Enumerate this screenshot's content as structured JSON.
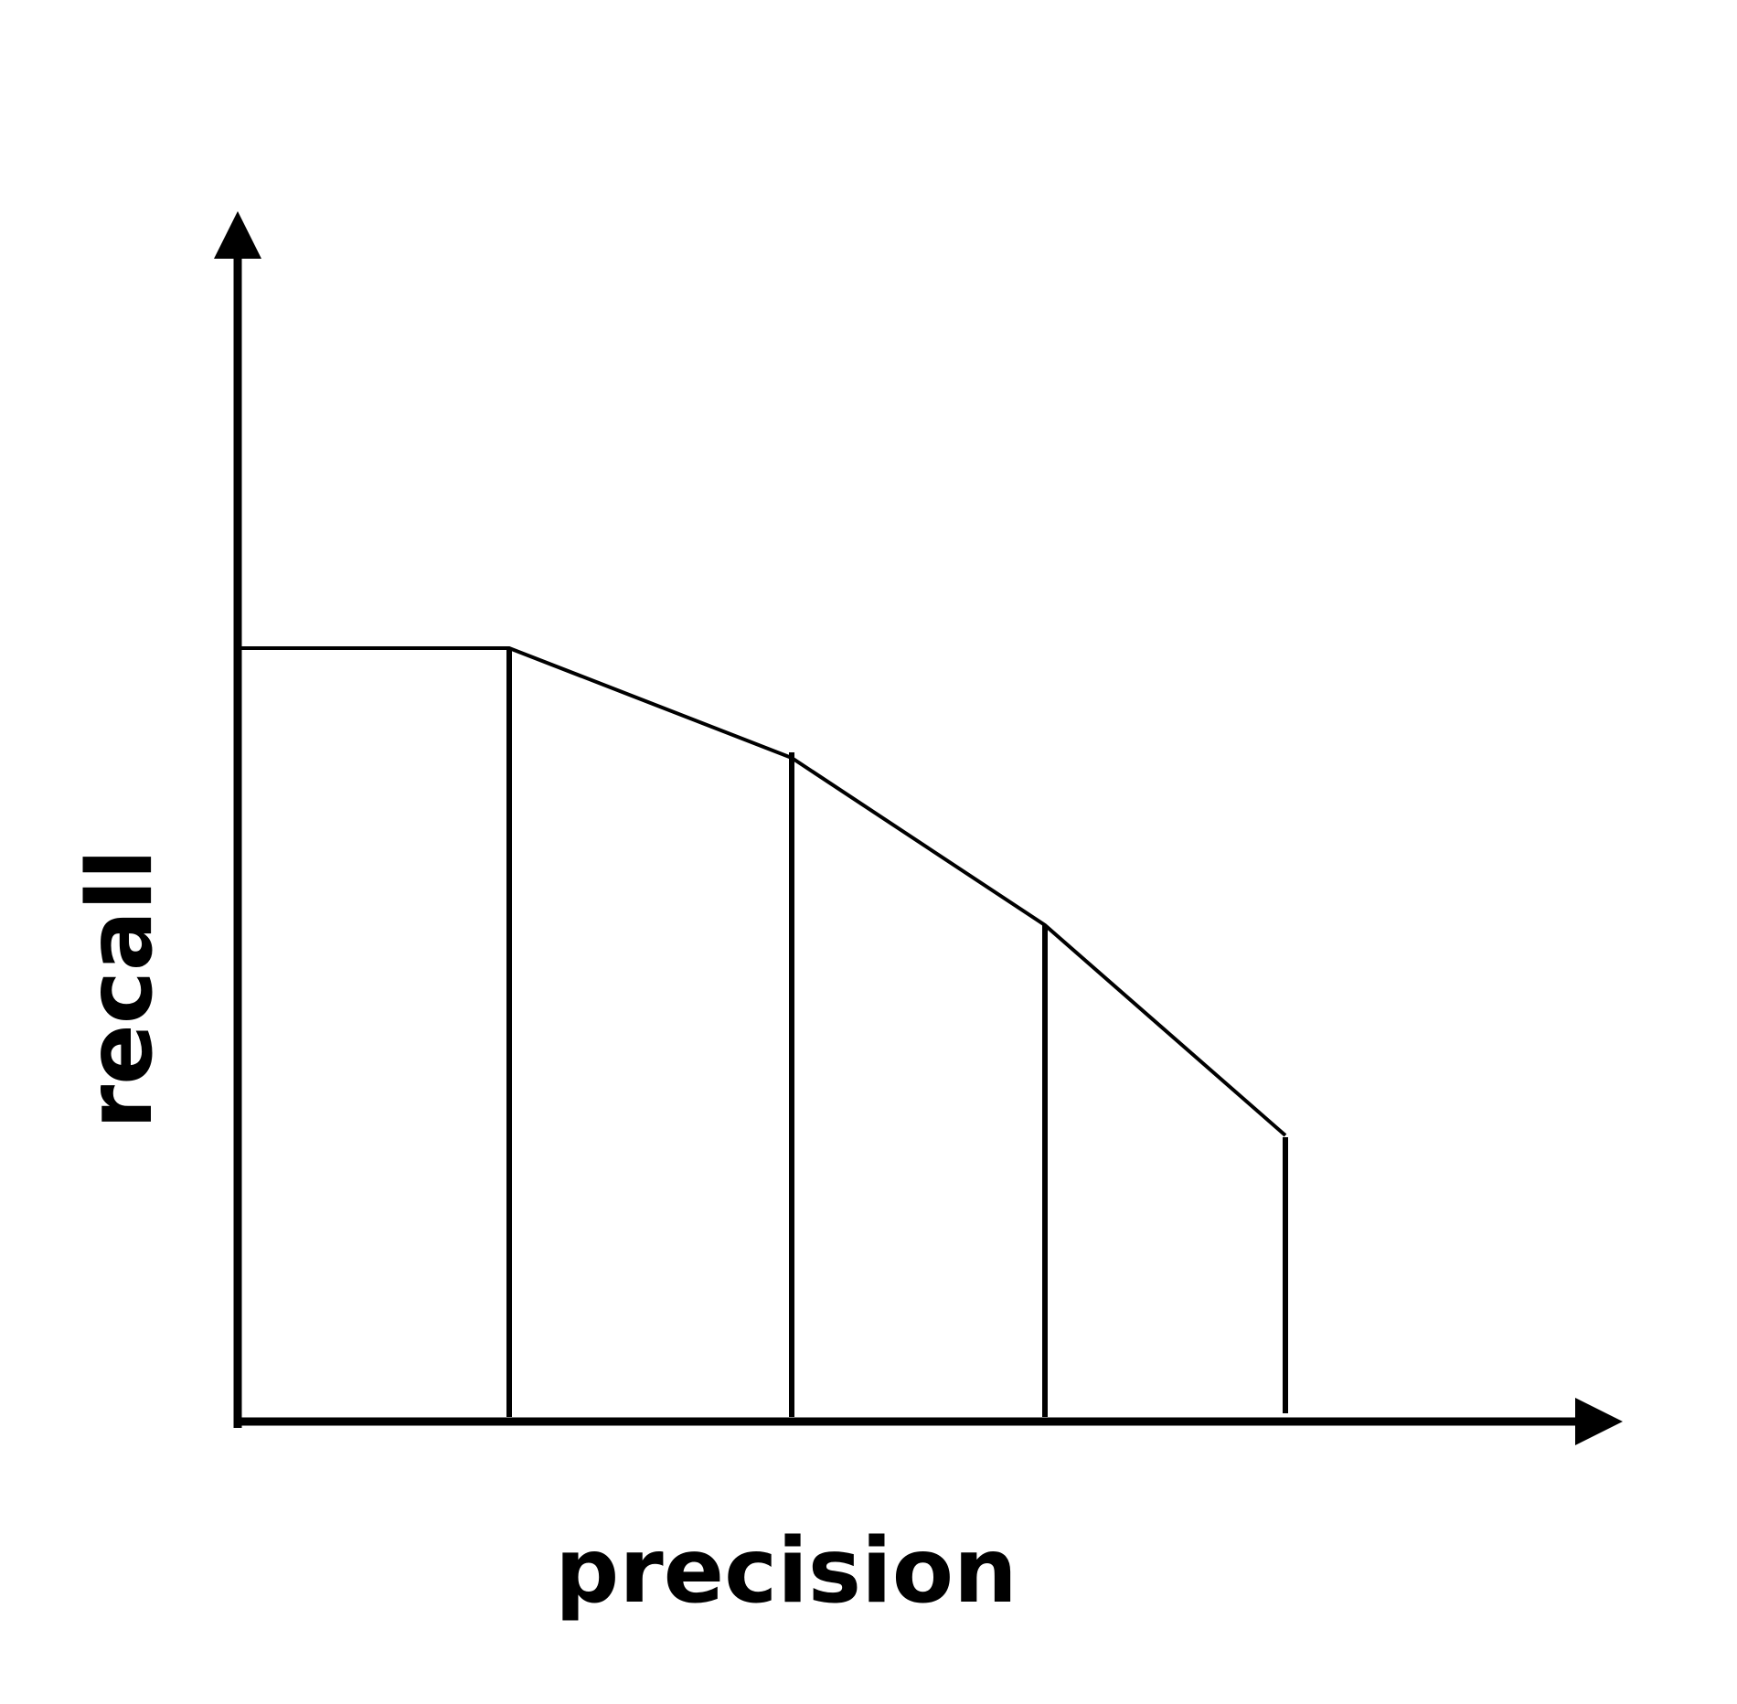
{
  "diagram": {
    "x_axis_label": "precision",
    "y_axis_label": "recall",
    "colors": {
      "ink": "#000000",
      "background": "#ffffff"
    }
  }
}
